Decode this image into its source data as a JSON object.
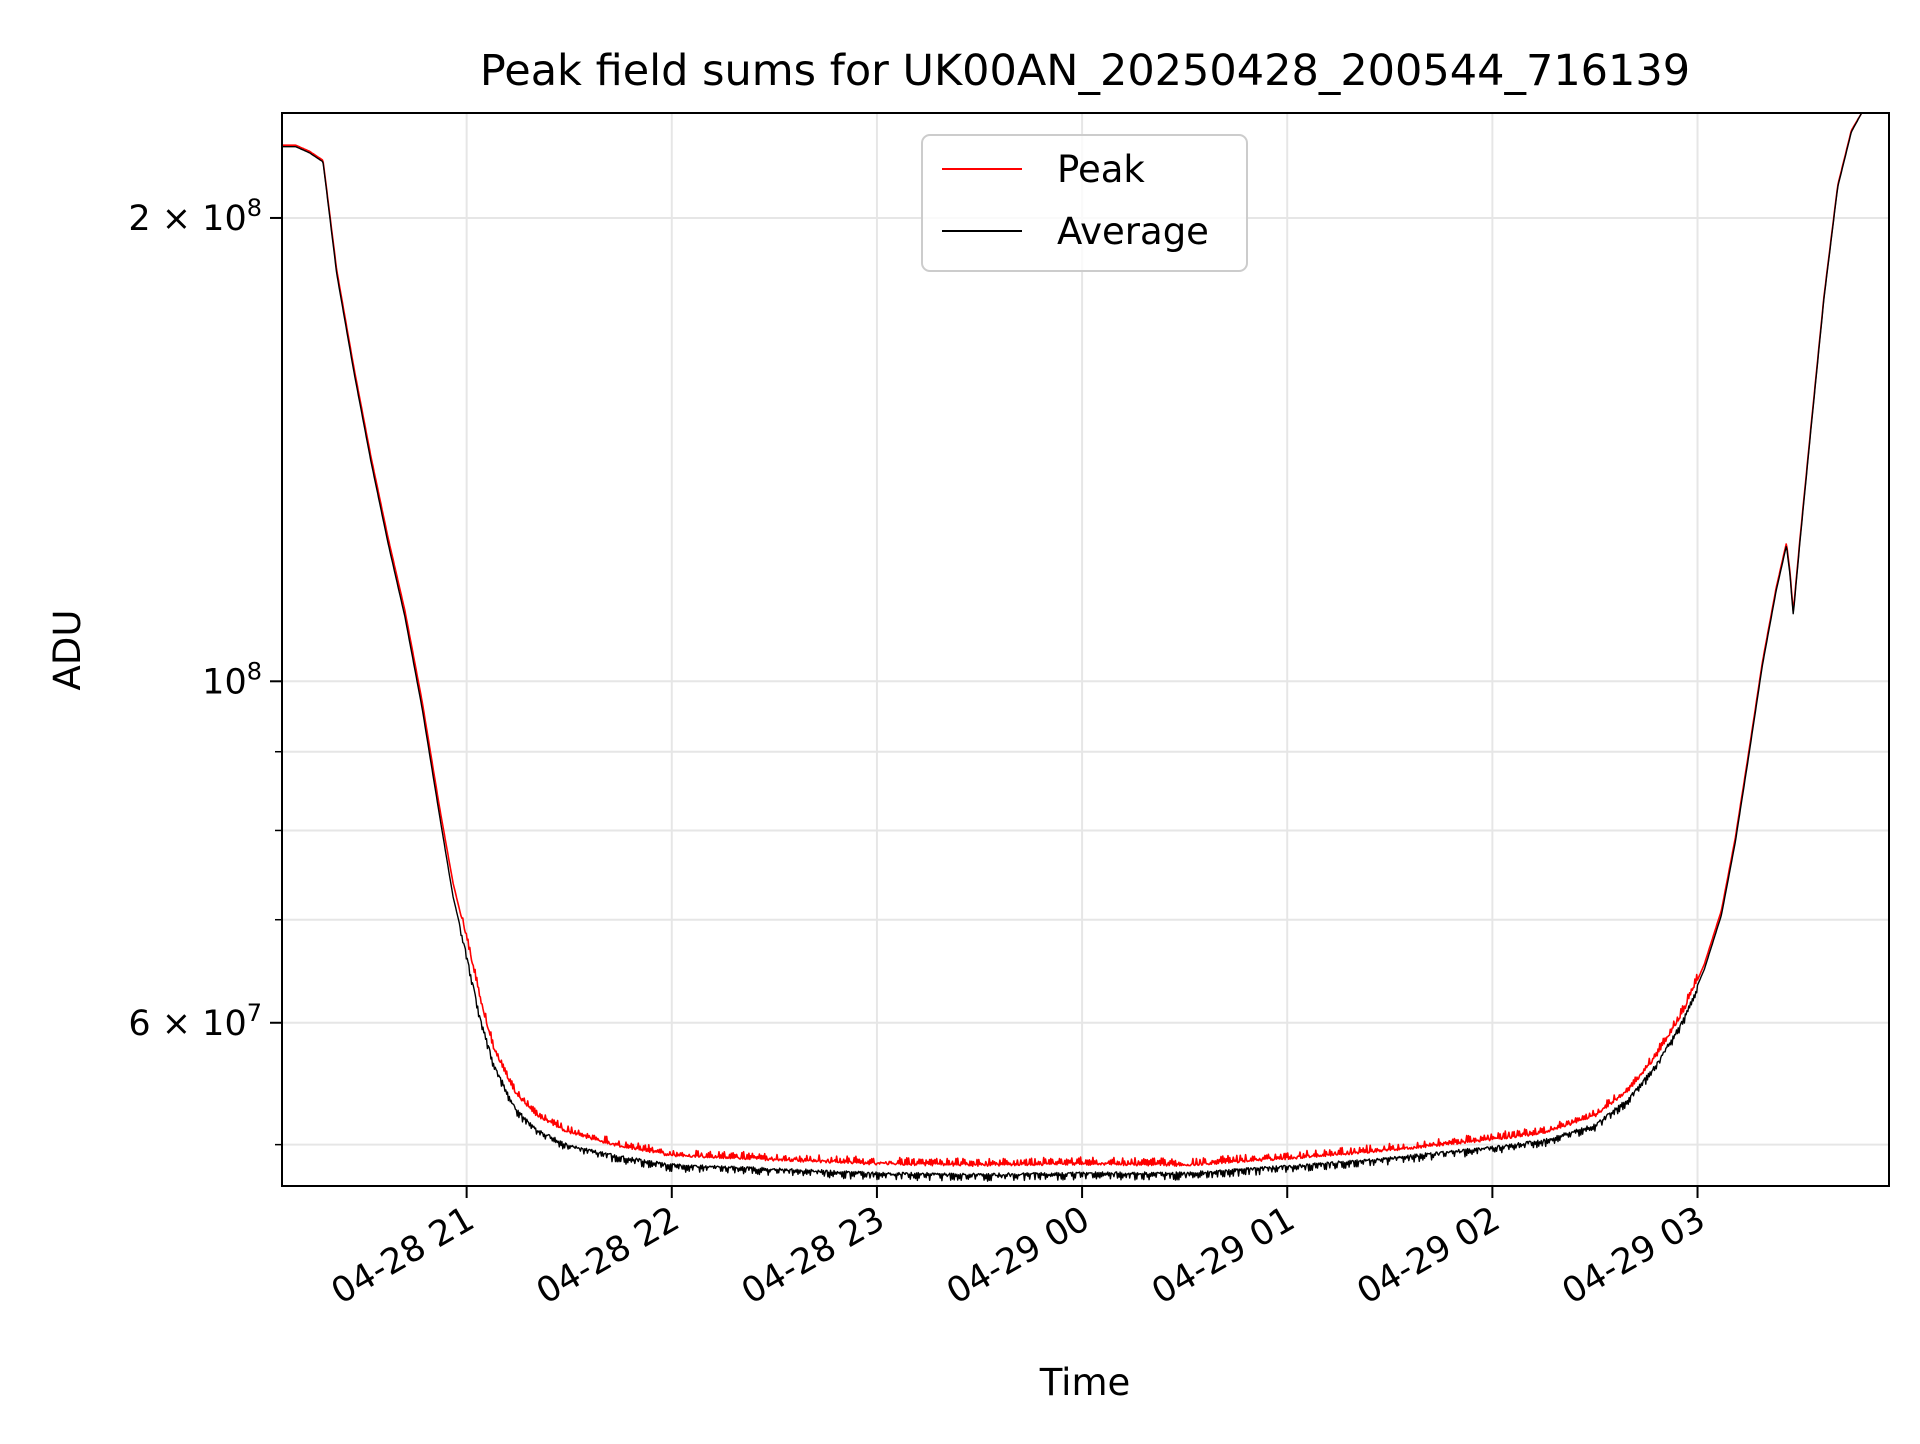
{
  "chart_data": {
    "type": "line",
    "title": "Peak field sums for UK00AN_20250428_200544_716139",
    "xlabel": "Time",
    "ylabel": "ADU",
    "y_scale": "log",
    "xlim": [
      "2025-04-28 20:06",
      "2025-04-29 03:56"
    ],
    "ylim": [
      47000000,
      234000000
    ],
    "grid": true,
    "legend": {
      "placement": "top-center",
      "entries": [
        "Peak",
        "Average"
      ]
    },
    "x_ticks": [
      {
        "t": "2025-04-28 21:00",
        "label": "04-28 21"
      },
      {
        "t": "2025-04-28 22:00",
        "label": "04-28 22"
      },
      {
        "t": "2025-04-28 23:00",
        "label": "04-28 23"
      },
      {
        "t": "2025-04-29 00:00",
        "label": "04-29 00"
      },
      {
        "t": "2025-04-29 01:00",
        "label": "04-29 01"
      },
      {
        "t": "2025-04-29 02:00",
        "label": "04-29 02"
      },
      {
        "t": "2025-04-29 03:00",
        "label": "04-29 03"
      }
    ],
    "y_major_ticks": [
      {
        "value": 100000000,
        "base": "10",
        "exp": "8"
      },
      {
        "value": 200000000,
        "mant": "2",
        "base": "10",
        "exp": "8"
      },
      {
        "value": 60000000,
        "mant": "6",
        "base": "10",
        "exp": "7"
      }
    ],
    "y_minor_ticks": [
      50000000,
      70000000,
      80000000,
      90000000
    ],
    "series": [
      {
        "name": "Peak",
        "color": "#ff0000",
        "noise": "above",
        "points": [
          [
            "2025-04-28 20:06",
            223000000
          ],
          [
            "2025-04-28 20:10",
            223000000
          ],
          [
            "2025-04-28 20:14",
            221000000
          ],
          [
            "2025-04-28 20:18",
            218000000
          ],
          [
            "2025-04-28 20:22",
            185000000
          ],
          [
            "2025-04-28 20:27",
            160000000
          ],
          [
            "2025-04-28 20:32",
            140000000
          ],
          [
            "2025-04-28 20:37",
            124000000
          ],
          [
            "2025-04-28 20:42",
            111000000
          ],
          [
            "2025-04-28 20:47",
            97000000
          ],
          [
            "2025-04-28 20:52",
            83000000
          ],
          [
            "2025-04-28 20:56",
            74000000
          ],
          [
            "2025-04-28 21:00",
            68000000
          ],
          [
            "2025-04-28 21:04",
            62000000
          ],
          [
            "2025-04-28 21:08",
            57500000
          ],
          [
            "2025-04-28 21:14",
            54000000
          ],
          [
            "2025-04-28 21:20",
            52200000
          ],
          [
            "2025-04-28 21:30",
            50800000
          ],
          [
            "2025-04-28 21:45",
            49800000
          ],
          [
            "2025-04-28 22:00",
            49100000
          ],
          [
            "2025-04-28 22:30",
            48800000
          ],
          [
            "2025-04-28 23:00",
            48500000
          ],
          [
            "2025-04-28 23:30",
            48400000
          ],
          [
            "2025-04-29 00:00",
            48500000
          ],
          [
            "2025-04-29 00:30",
            48400000
          ],
          [
            "2025-04-29 01:00",
            48900000
          ],
          [
            "2025-04-29 01:30",
            49500000
          ],
          [
            "2025-04-29 02:00",
            50300000
          ],
          [
            "2025-04-29 02:15",
            50800000
          ],
          [
            "2025-04-29 02:30",
            52100000
          ],
          [
            "2025-04-29 02:40",
            54200000
          ],
          [
            "2025-04-29 02:48",
            57000000
          ],
          [
            "2025-04-29 02:56",
            61000000
          ],
          [
            "2025-04-29 03:02",
            65500000
          ],
          [
            "2025-04-29 03:07",
            71000000
          ],
          [
            "2025-04-29 03:11",
            79000000
          ],
          [
            "2025-04-29 03:15",
            90000000
          ],
          [
            "2025-04-29 03:19",
            103000000
          ],
          [
            "2025-04-29 03:23",
            115000000
          ],
          [
            "2025-04-29 03:26",
            123000000
          ],
          [
            "2025-04-29 03:27",
            118000000
          ],
          [
            "2025-04-29 03:28",
            111000000
          ],
          [
            "2025-04-29 03:30",
            124000000
          ],
          [
            "2025-04-29 03:33",
            145000000
          ],
          [
            "2025-04-29 03:37",
            178000000
          ],
          [
            "2025-04-29 03:41",
            210000000
          ],
          [
            "2025-04-29 03:45",
            228000000
          ],
          [
            "2025-04-29 03:48",
            234000000
          ]
        ]
      },
      {
        "name": "Average",
        "color": "#000000",
        "noise": "below",
        "points": [
          [
            "2025-04-28 20:06",
            222500000
          ],
          [
            "2025-04-28 20:10",
            222500000
          ],
          [
            "2025-04-28 20:14",
            220500000
          ],
          [
            "2025-04-28 20:18",
            217500000
          ],
          [
            "2025-04-28 20:22",
            184000000
          ],
          [
            "2025-04-28 20:27",
            159000000
          ],
          [
            "2025-04-28 20:32",
            139000000
          ],
          [
            "2025-04-28 20:37",
            123000000
          ],
          [
            "2025-04-28 20:42",
            110000000
          ],
          [
            "2025-04-28 20:47",
            96000000
          ],
          [
            "2025-04-28 20:52",
            82000000
          ],
          [
            "2025-04-28 20:56",
            72500000
          ],
          [
            "2025-04-28 21:00",
            66500000
          ],
          [
            "2025-04-28 21:04",
            60500000
          ],
          [
            "2025-04-28 21:08",
            56500000
          ],
          [
            "2025-04-28 21:14",
            53000000
          ],
          [
            "2025-04-28 21:20",
            51300000
          ],
          [
            "2025-04-28 21:30",
            50000000
          ],
          [
            "2025-04-28 21:45",
            49200000
          ],
          [
            "2025-04-28 22:00",
            48600000
          ],
          [
            "2025-04-28 22:30",
            48300000
          ],
          [
            "2025-04-28 23:00",
            48000000
          ],
          [
            "2025-04-28 23:30",
            47900000
          ],
          [
            "2025-04-29 00:00",
            48000000
          ],
          [
            "2025-04-29 00:30",
            48000000
          ],
          [
            "2025-04-29 01:00",
            48500000
          ],
          [
            "2025-04-29 01:30",
            49100000
          ],
          [
            "2025-04-29 02:00",
            49900000
          ],
          [
            "2025-04-29 02:15",
            50400000
          ],
          [
            "2025-04-29 02:30",
            51600000
          ],
          [
            "2025-04-29 02:40",
            53700000
          ],
          [
            "2025-04-29 02:48",
            56500000
          ],
          [
            "2025-04-29 02:56",
            60500000
          ],
          [
            "2025-04-29 03:02",
            65000000
          ],
          [
            "2025-04-29 03:07",
            70500000
          ],
          [
            "2025-04-29 03:11",
            78500000
          ],
          [
            "2025-04-29 03:15",
            89500000
          ],
          [
            "2025-04-29 03:19",
            102500000
          ],
          [
            "2025-04-29 03:23",
            114500000
          ],
          [
            "2025-04-29 03:26",
            122500000
          ],
          [
            "2025-04-29 03:27",
            117500000
          ],
          [
            "2025-04-29 03:28",
            110500000
          ],
          [
            "2025-04-29 03:30",
            123500000
          ],
          [
            "2025-04-29 03:33",
            144500000
          ],
          [
            "2025-04-29 03:37",
            177500000
          ],
          [
            "2025-04-29 03:41",
            209500000
          ],
          [
            "2025-04-29 03:45",
            227500000
          ],
          [
            "2025-04-29 03:48",
            234000000
          ]
        ]
      }
    ]
  }
}
